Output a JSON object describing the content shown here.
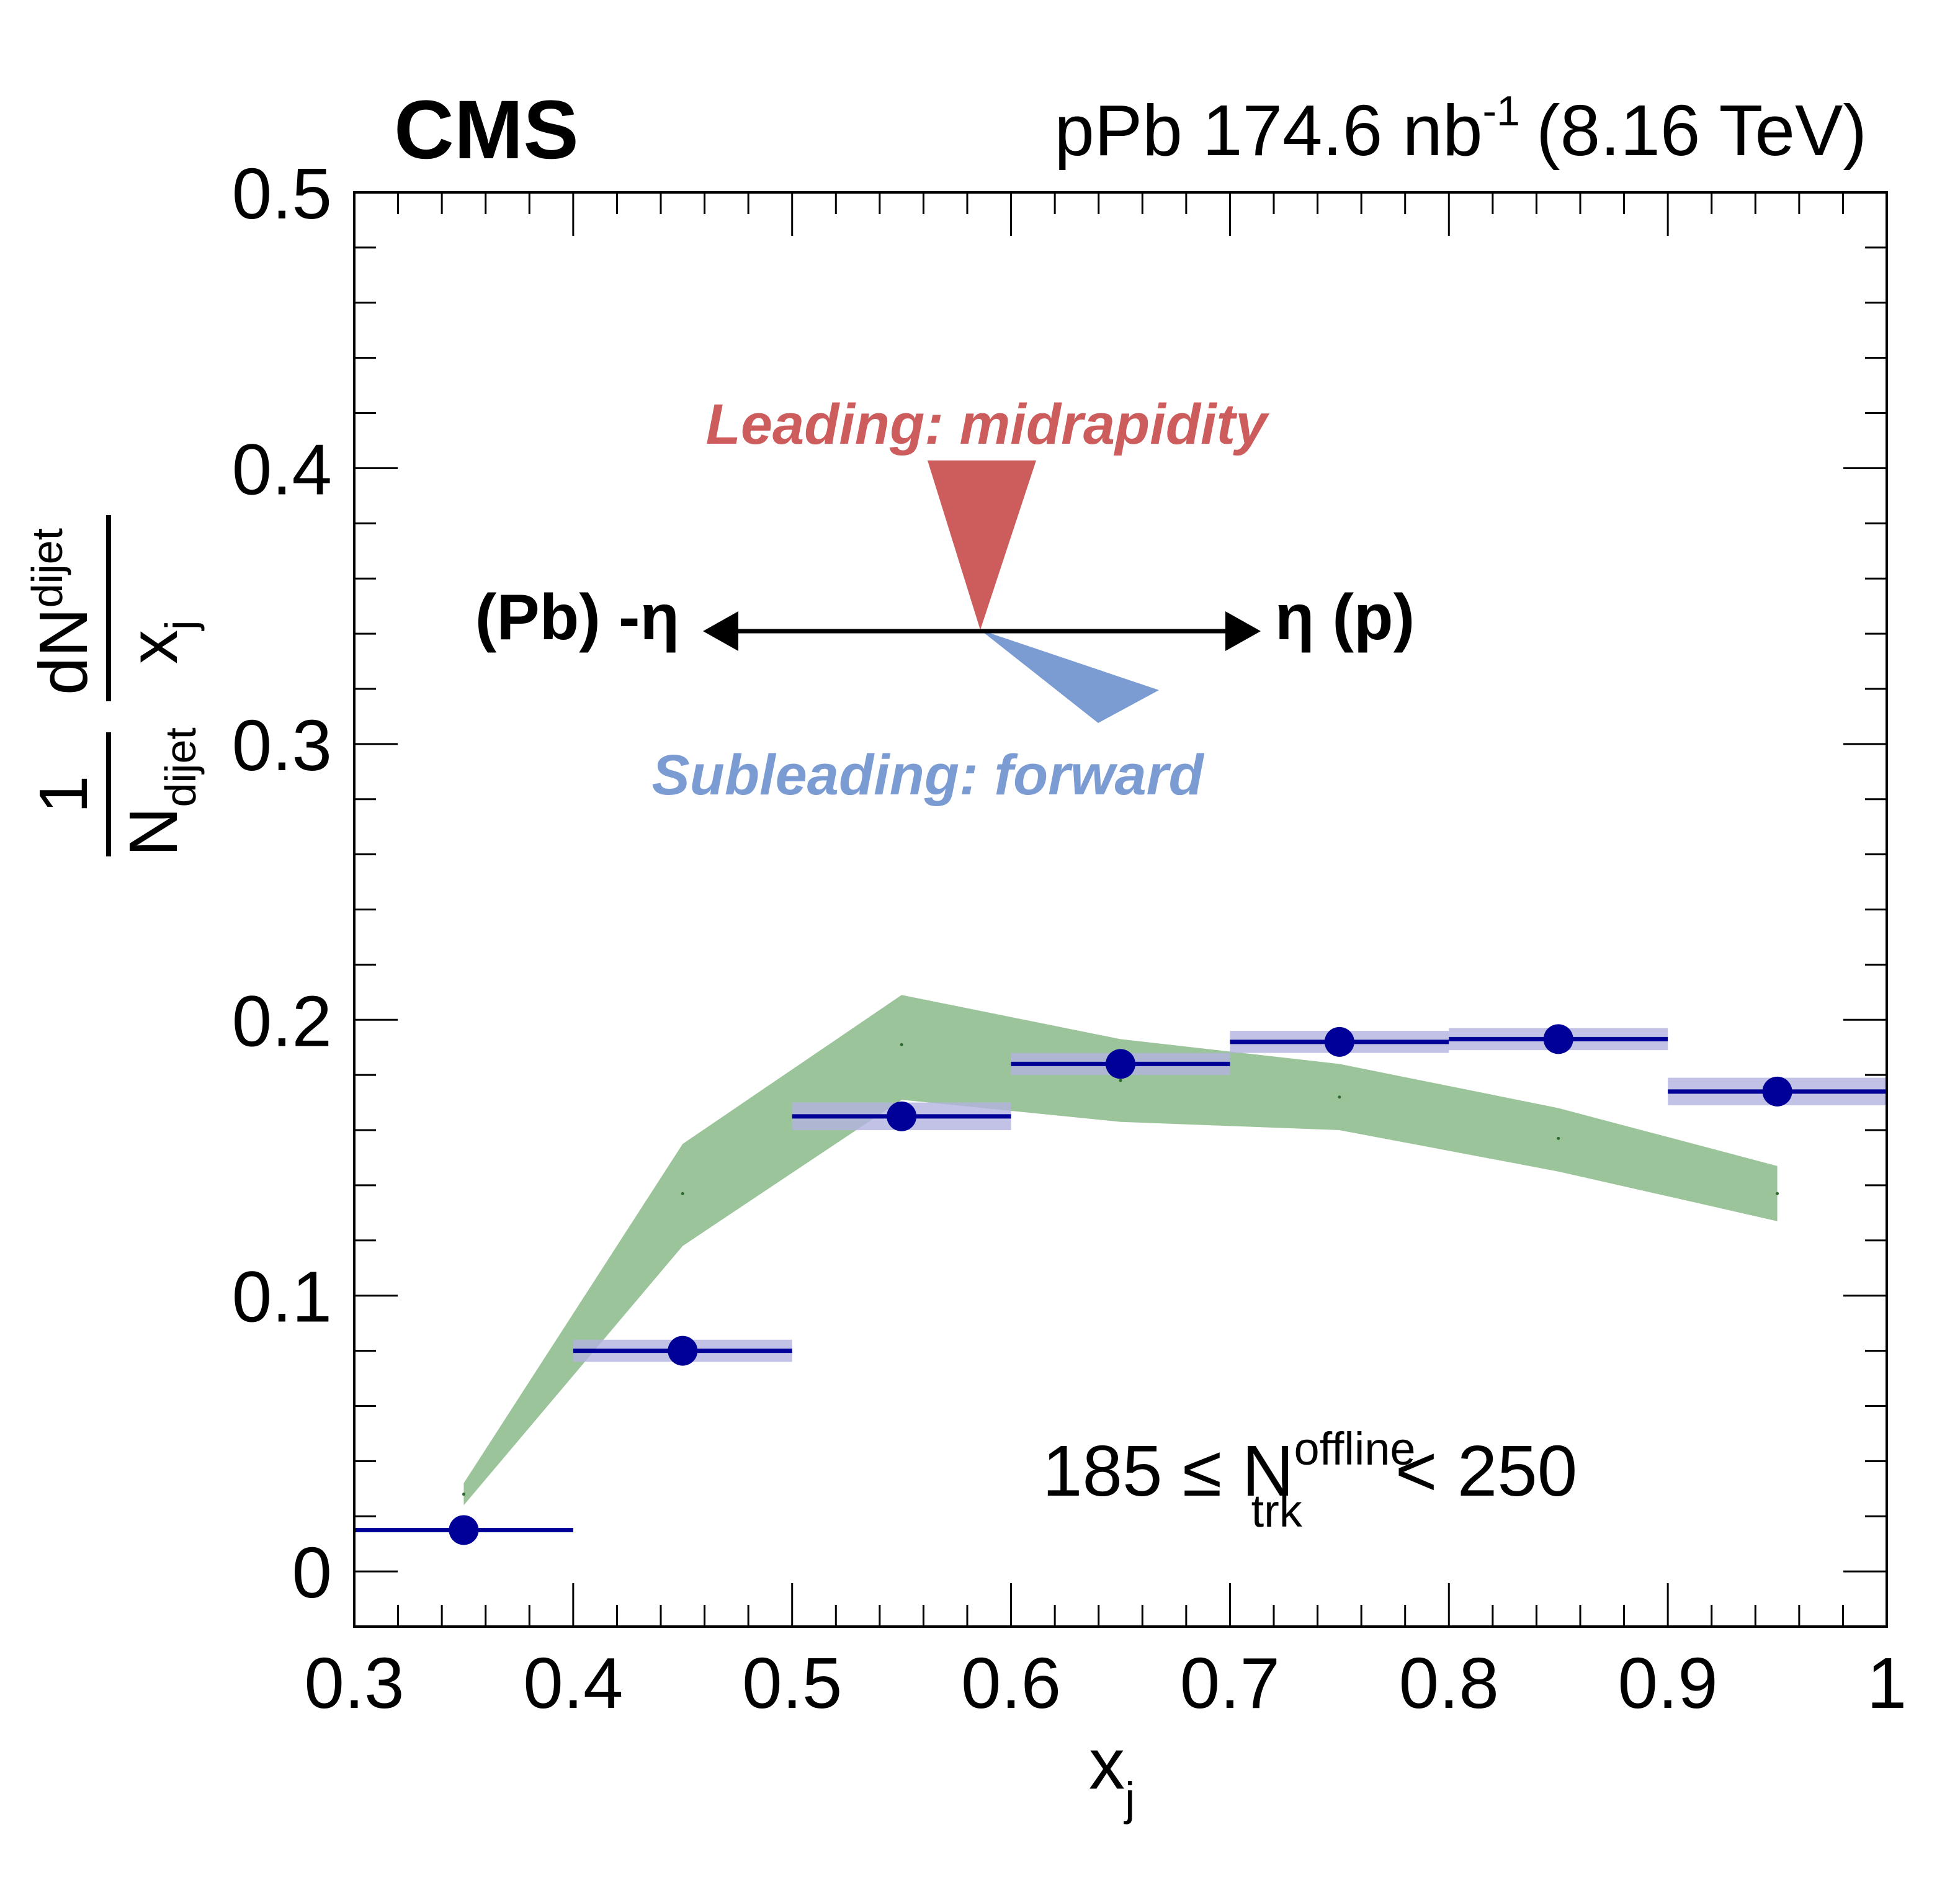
{
  "header": {
    "experiment": "CMS",
    "dataset_prefix": "pPb 174.6 nb",
    "lumi_exponent": "-1",
    "energy": "(8.16 TeV)"
  },
  "annotation": {
    "leading": "Leading: midrapidity",
    "subleading": "Subleading: forward",
    "left_arrow_label": "(Pb) -η",
    "right_arrow_label": "η (p)",
    "selection_min": "185 ≤ N",
    "selection_sup": "offline",
    "selection_sub": "trk",
    "selection_max": "< 250"
  },
  "colors": {
    "data": "#000099",
    "data_band": "#b3b3e0",
    "model_band": "#9bc49b",
    "leading": "#cd5c5c",
    "subleading": "#7b9bd3"
  },
  "chart_data": {
    "type": "scatter",
    "xlabel": "x",
    "xlabel_sub": "j",
    "ylabel": {
      "num_prefix": "1",
      "den_main": "N",
      "den_sub": "dijet",
      "frac_num": "dN",
      "frac_num_sub": "dijet",
      "frac_den": "x",
      "frac_den_sub": "j"
    },
    "xlim": [
      0.3,
      1.0
    ],
    "ylim": [
      -0.02,
      0.5
    ],
    "x_ticks": [
      "0.3",
      "0.4",
      "0.5",
      "0.6",
      "0.7",
      "0.8",
      "0.9",
      "1"
    ],
    "y_ticks": [
      "0",
      "0.1",
      "0.2",
      "0.3",
      "0.4",
      "0.5"
    ],
    "series": [
      {
        "kind": "data",
        "x": [
          0.35,
          0.45,
          0.55,
          0.65,
          0.75,
          0.85,
          0.95
        ],
        "x_half_width": 0.05,
        "y": [
          0.015,
          0.08,
          0.165,
          0.184,
          0.192,
          0.193,
          0.174
        ],
        "syst": [
          0.0,
          0.004,
          0.005,
          0.004,
          0.004,
          0.004,
          0.005
        ]
      },
      {
        "kind": "model_band",
        "x": [
          0.35,
          0.45,
          0.55,
          0.65,
          0.75,
          0.85,
          0.95
        ],
        "y": [
          0.028,
          0.137,
          0.191,
          0.178,
          0.172,
          0.157,
          0.137
        ],
        "low": [
          0.024,
          0.118,
          0.171,
          0.163,
          0.16,
          0.145,
          0.127
        ],
        "high": [
          0.032,
          0.155,
          0.209,
          0.193,
          0.184,
          0.168,
          0.147
        ]
      }
    ]
  }
}
